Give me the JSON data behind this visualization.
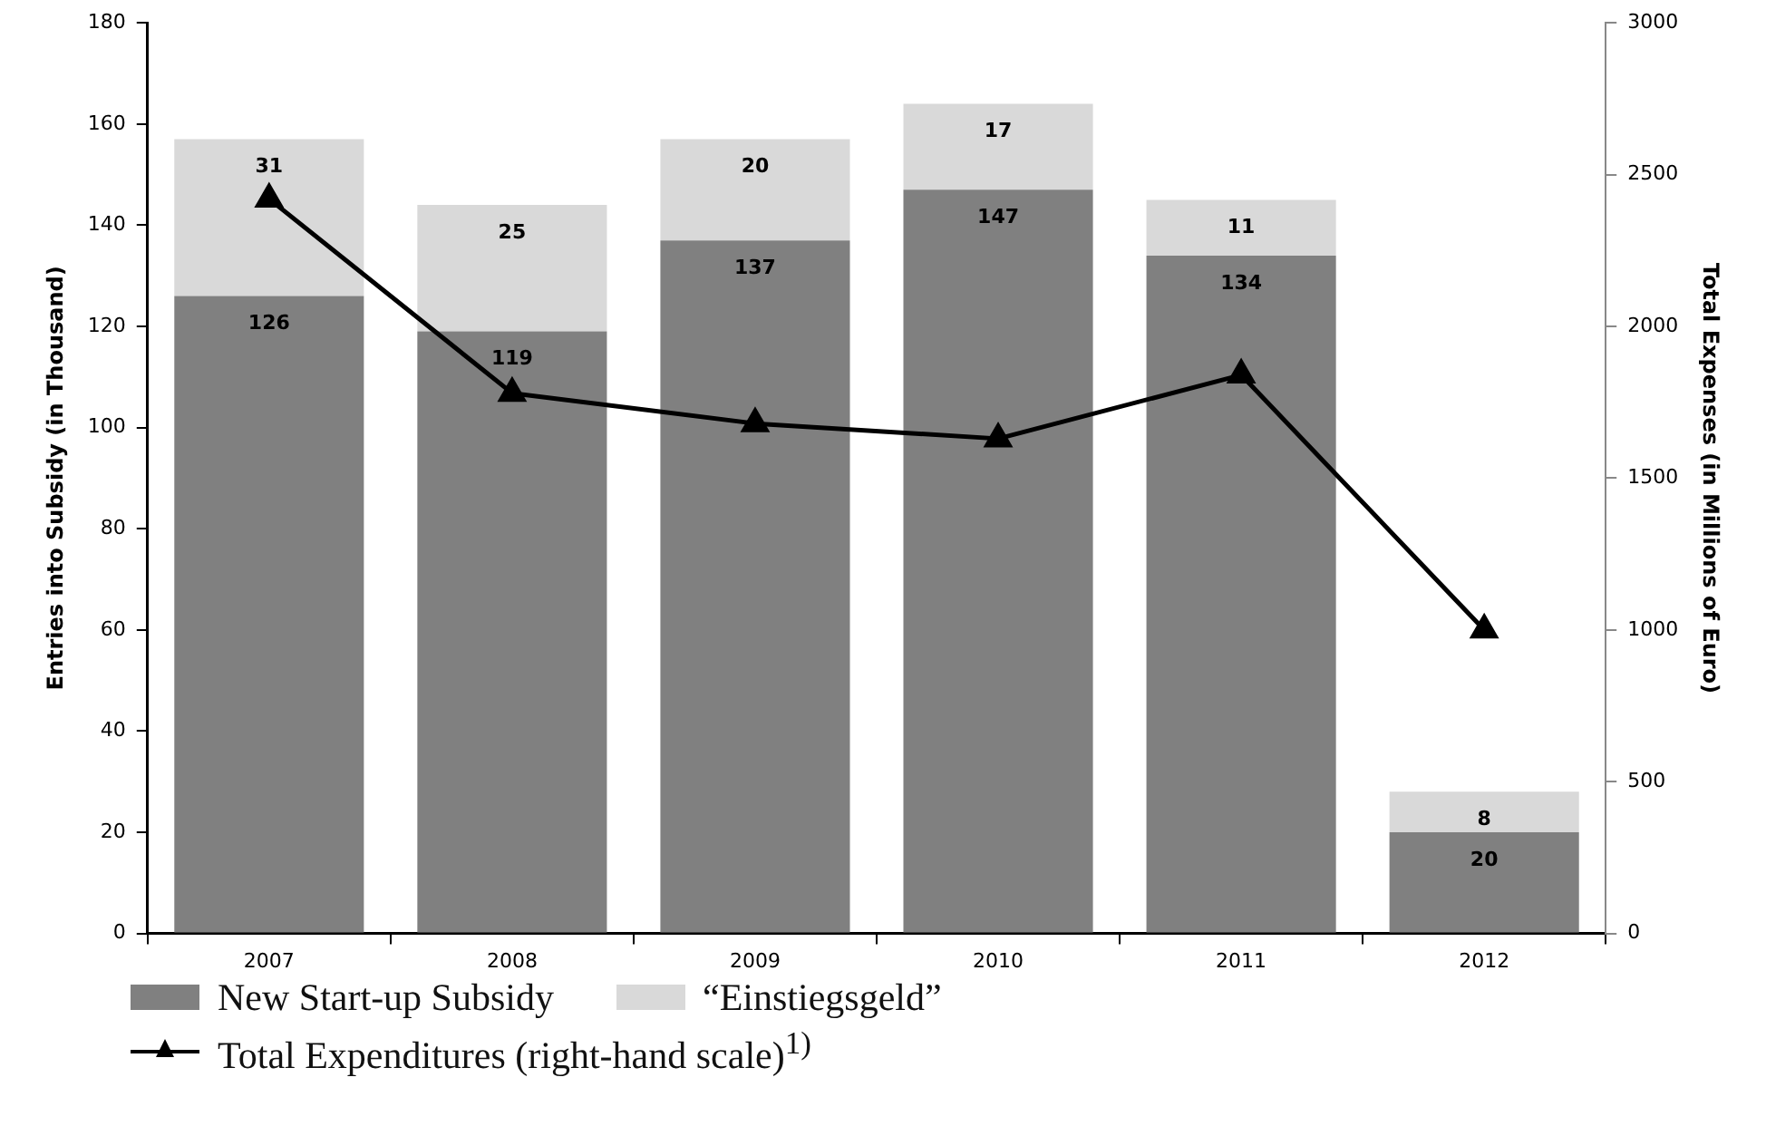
{
  "chart_data": {
    "type": "bar",
    "stacked": true,
    "ylabel": "Entries into Subsidy (in Thousand)",
    "y2label": "Total Expenses (in Millions of Euro)",
    "categories": [
      "2007",
      "2008",
      "2009",
      "2010",
      "2011",
      "2012"
    ],
    "series": [
      {
        "name": "New Start-up Subsidy",
        "color": "#808080",
        "values": [
          126,
          119,
          137,
          147,
          134,
          20
        ],
        "value_labels": [
          "126",
          "119",
          "137",
          "147",
          "134",
          "20"
        ]
      },
      {
        "name": "“Einstiegsgeld”",
        "color": "#d9d9d9",
        "values": [
          31,
          25,
          20,
          17,
          11,
          8
        ],
        "value_labels": [
          "31",
          "25",
          "20",
          "17",
          "11",
          "8"
        ]
      },
      {
        "name": "Total Expenditures (right-hand scale)$^{1)}$",
        "type": "line",
        "axis": "y2",
        "color": "#000000",
        "marker": "triangle",
        "line_style": "solid",
        "values": [
          2420,
          1780,
          1680,
          1630,
          1840,
          1000
        ]
      }
    ],
    "ylim": [
      0,
      180
    ],
    "yticks": [
      0,
      20,
      40,
      60,
      80,
      100,
      120,
      140,
      160,
      180
    ],
    "y2lim": [
      0,
      3000
    ],
    "y2ticks": [
      0,
      500,
      1000,
      1500,
      2000,
      2500,
      3000
    ],
    "grid": false,
    "legend": "bottom"
  }
}
